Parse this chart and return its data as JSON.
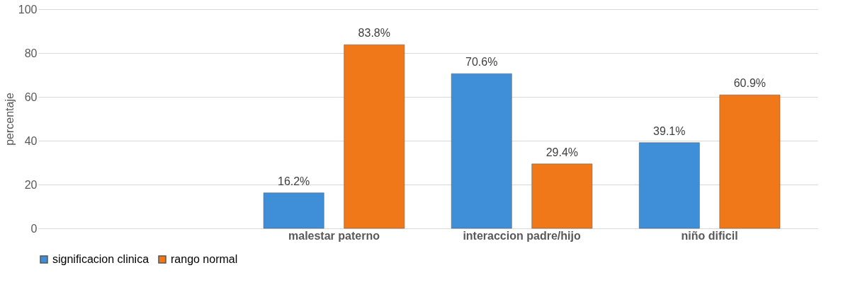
{
  "chart_data": {
    "type": "bar",
    "ylabel": "percentaje",
    "categories": [
      null,
      "malestar paterno",
      "interaccion padre/hijo",
      "niño dificil"
    ],
    "series": [
      {
        "name": "significacion clinica",
        "color": "#3f8fd8",
        "values": [
          null,
          16.2,
          70.6,
          39.1
        ],
        "value_labels": [
          null,
          "16.2%",
          "70.6%",
          "39.1%"
        ]
      },
      {
        "name": "rango normal",
        "color": "#f07818",
        "values": [
          null,
          83.8,
          29.4,
          60.9
        ],
        "value_labels": [
          null,
          "83.8%",
          "29.4%",
          "60.9%"
        ]
      }
    ],
    "ylim": [
      0,
      100
    ],
    "yticks": [
      0,
      20,
      40,
      60,
      80,
      100
    ],
    "grid": "y",
    "legend": "bottom"
  }
}
